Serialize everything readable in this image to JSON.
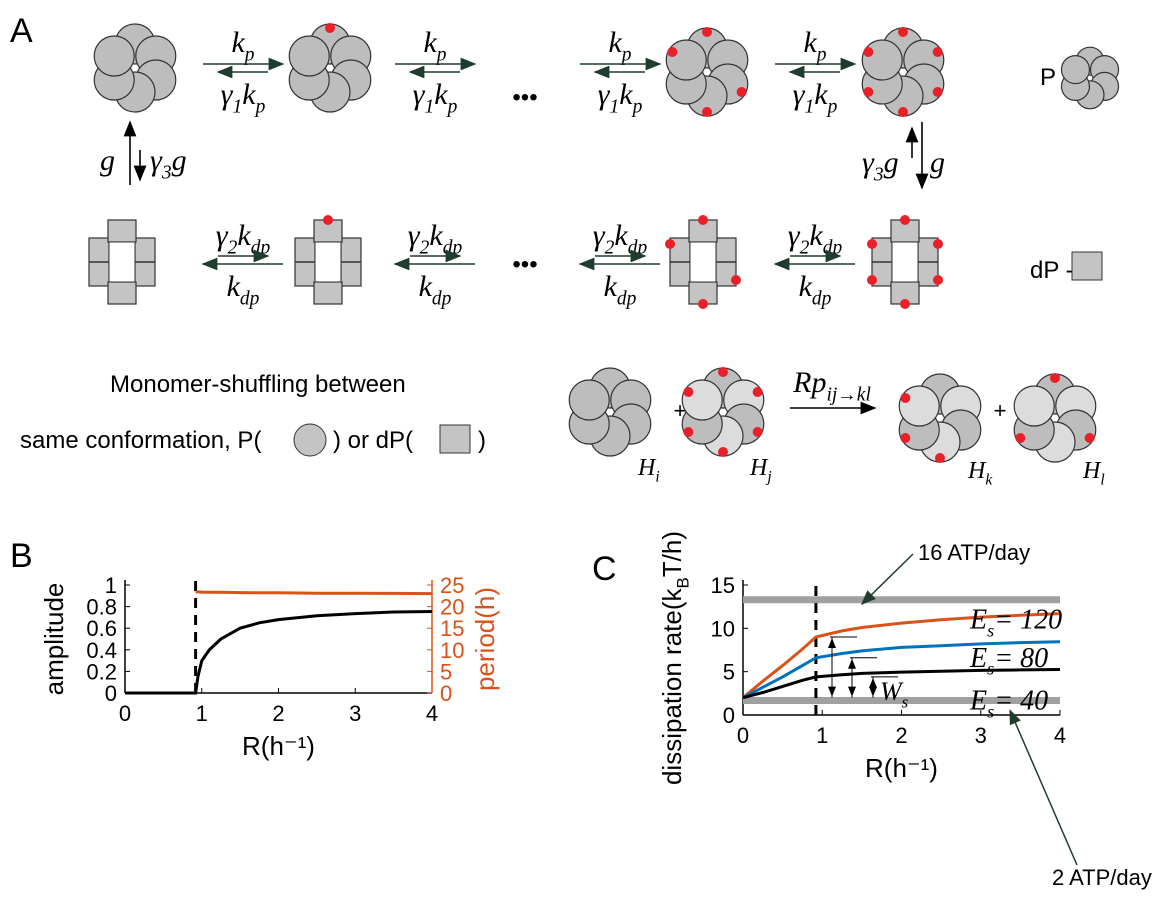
{
  "panels": [
    "A",
    "B",
    "C"
  ],
  "diagram": {
    "rates": {
      "kp": [
        "k",
        "p"
      ],
      "g1kp": [
        "γ",
        "1",
        "k",
        "p"
      ],
      "g2kdp": [
        "γ",
        "2",
        "k",
        "dp"
      ],
      "kdp": [
        "k",
        "dp"
      ],
      "g": [
        "g"
      ],
      "g3g": [
        "γ",
        "3",
        "g"
      ],
      "Rp": [
        "Rp",
        "ij→kl"
      ]
    },
    "ellipsis": "•••",
    "legend": {
      "p": "P -",
      "dp": "dP -"
    },
    "shuffling": {
      "line1": "Monomer-shuffling between",
      "line2a": "same conformation,  P(",
      "line2b": ") or dP(",
      "line2c": ")"
    },
    "plus": "+",
    "hexamers": [
      [
        "H",
        "i"
      ],
      [
        "H",
        "j"
      ],
      [
        "H",
        "k"
      ],
      [
        "H",
        "l"
      ]
    ]
  },
  "chart_data": [
    {
      "type": "line",
      "xlabel": "R(h⁻¹)",
      "ylabel": "amplitude",
      "y2label": "period(h)",
      "xlim": [
        0,
        4
      ],
      "xticks": [
        0,
        1,
        2,
        3,
        4
      ],
      "ylim": [
        0,
        1
      ],
      "yticks": [
        0,
        0.2,
        0.4,
        0.6,
        0.8,
        1
      ],
      "y2lim": [
        0,
        25
      ],
      "y2ticks": [
        0,
        5,
        10,
        15,
        20,
        25
      ],
      "y2color": "#d95319",
      "vline": 0.92,
      "x": [
        0,
        0.5,
        0.9,
        0.92,
        0.95,
        1,
        1.1,
        1.25,
        1.5,
        1.75,
        2,
        2.5,
        3,
        3.5,
        4
      ],
      "series": [
        {
          "color": "#000000",
          "values": [
            0,
            0,
            0,
            0,
            0.15,
            0.3,
            0.4,
            0.5,
            0.6,
            0.65,
            0.68,
            0.715,
            0.735,
            0.75,
            0.755
          ]
        },
        {
          "color": "#d95319",
          "axis": "y2",
          "values": [
            null,
            null,
            null,
            23.4,
            23.4,
            23.35,
            23.3,
            23.3,
            23.25,
            23.2,
            23.2,
            23.1,
            23.1,
            23.05,
            23.0
          ]
        }
      ]
    },
    {
      "type": "line",
      "xlabel": "R(h⁻¹)",
      "ylabel": [
        "dissipation rate(k",
        "B",
        "T/h)"
      ],
      "xlim": [
        0,
        4
      ],
      "xticks": [
        0,
        1,
        2,
        3,
        4
      ],
      "ylim": [
        0,
        15
      ],
      "yticks": [
        0,
        5,
        10,
        15
      ],
      "vline": 0.92,
      "hlines": [
        {
          "y": 13.3,
          "label": "16 ATP/day",
          "color": "#a0a0a0"
        },
        {
          "y": 1.67,
          "label": "2 ATP/day",
          "color": "#a0a0a0"
        }
      ],
      "work_label": [
        "W",
        "s"
      ],
      "x": [
        0,
        0.25,
        0.5,
        0.75,
        0.92,
        1.25,
        1.5,
        2,
        2.5,
        3,
        3.5,
        4
      ],
      "series": [
        {
          "name": [
            "E",
            "s",
            "= 120"
          ],
          "color": "#d95319",
          "values": [
            2,
            3.9,
            5.7,
            7.6,
            9.0,
            9.7,
            10.1,
            10.6,
            11.0,
            11.3,
            11.5,
            11.7
          ]
        },
        {
          "name": [
            "E",
            "s",
            "= 80"
          ],
          "color": "#0072bd",
          "values": [
            2,
            3.2,
            4.4,
            5.7,
            6.6,
            7.1,
            7.4,
            7.8,
            8.0,
            8.2,
            8.35,
            8.45
          ]
        },
        {
          "name": [
            "E",
            "s",
            "= 40"
          ],
          "color": "#000000",
          "values": [
            2,
            2.6,
            3.3,
            4.0,
            4.4,
            4.65,
            4.8,
            4.95,
            5.05,
            5.15,
            5.2,
            5.25
          ]
        }
      ]
    }
  ]
}
